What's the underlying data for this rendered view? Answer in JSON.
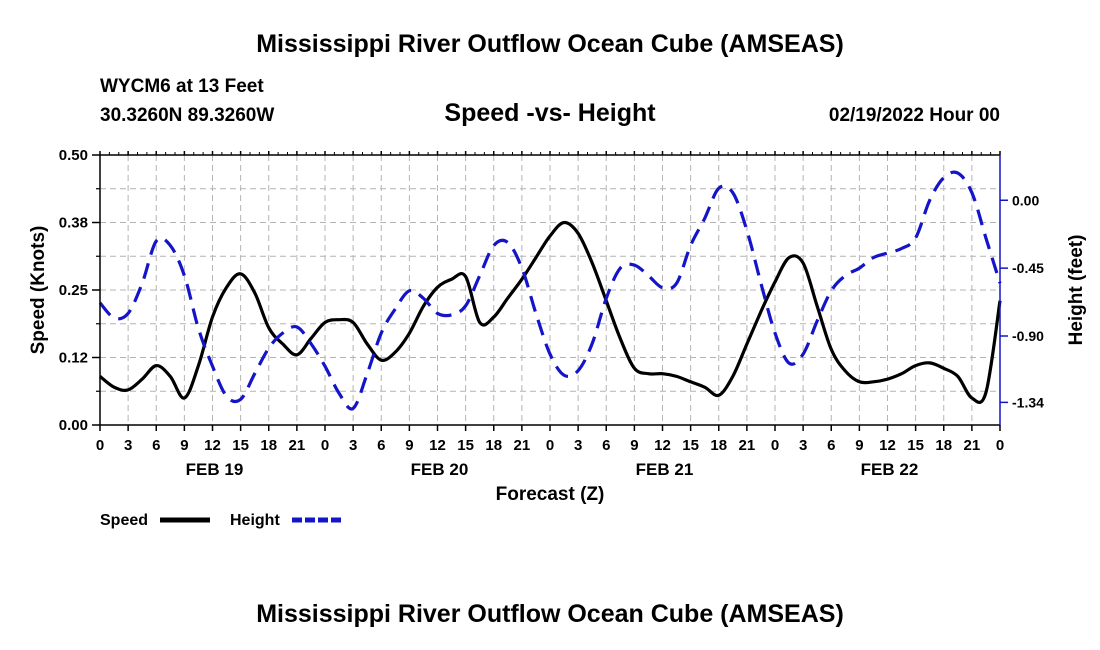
{
  "header": {
    "title": "Mississippi River Outflow Ocean Cube (AMSEAS)",
    "station": "WYCM6 at 13 Feet",
    "coords": "30.3260N  89.3260W",
    "subtitle": "Speed -vs- Height",
    "datetime": "02/19/2022 Hour 00"
  },
  "footer": {
    "title": "Mississippi River Outflow Ocean Cube (AMSEAS)"
  },
  "chart_data": {
    "type": "line",
    "title": "Speed -vs- Height",
    "xlabel": "Forecast (Z)",
    "ylabel": "Speed (Knots)",
    "y2label": "Height (feet)",
    "xlim": [
      0,
      96
    ],
    "ylim": [
      0,
      0.5
    ],
    "y2lim": [
      -1.49,
      0.3
    ],
    "x_tick_labels": [
      "0",
      "3",
      "6",
      "9",
      "12",
      "15",
      "18",
      "21",
      "0",
      "3",
      "6",
      "9",
      "12",
      "15",
      "18",
      "21",
      "0",
      "3",
      "6",
      "9",
      "12",
      "15",
      "18",
      "21",
      "0",
      "3",
      "6",
      "9",
      "12",
      "15",
      "18",
      "21",
      "0"
    ],
    "day_labels": [
      {
        "label": "FEB 19",
        "hour": 12
      },
      {
        "label": "FEB 20",
        "hour": 36
      },
      {
        "label": "FEB 21",
        "hour": 60
      },
      {
        "label": "FEB 22",
        "hour": 84
      }
    ],
    "y_tick_labels": [
      "0.00",
      "0.12",
      "0.25",
      "0.38",
      "0.50"
    ],
    "y2_ticks": [
      0.0,
      -0.45,
      -0.9,
      -1.34
    ],
    "y2_tick_labels": [
      "0.00",
      "-0.45",
      "-0.90",
      "-1.34"
    ],
    "grid": true,
    "legend": [
      {
        "name": "Speed",
        "color": "#000000",
        "style": "solid"
      },
      {
        "name": "Height",
        "color": "#1414c8",
        "style": "dashed"
      }
    ],
    "series": [
      {
        "name": "Speed",
        "axis": "left",
        "color": "#000000",
        "style": "solid",
        "x": [
          0,
          1.5,
          3,
          4.5,
          6,
          7.5,
          9,
          10.5,
          12,
          13.5,
          15,
          16.5,
          18,
          19.5,
          21,
          22.5,
          24,
          25.5,
          27,
          28.5,
          30,
          31.5,
          33,
          34.5,
          36,
          37.5,
          39,
          40.5,
          42,
          43.5,
          45,
          46.5,
          48,
          49.5,
          51,
          52.5,
          54,
          55.5,
          57,
          58.5,
          60,
          61.5,
          63,
          64.5,
          66,
          67.5,
          69,
          70.5,
          72,
          73.5,
          75,
          76.5,
          78,
          79.5,
          81,
          82.5,
          84,
          85.5,
          87,
          88.5,
          90,
          91.5,
          93,
          94.5,
          96
        ],
        "values": [
          0.09,
          0.07,
          0.065,
          0.085,
          0.11,
          0.09,
          0.05,
          0.11,
          0.2,
          0.255,
          0.28,
          0.245,
          0.18,
          0.15,
          0.13,
          0.16,
          0.19,
          0.195,
          0.19,
          0.15,
          0.12,
          0.135,
          0.17,
          0.22,
          0.255,
          0.27,
          0.275,
          0.19,
          0.2,
          0.235,
          0.27,
          0.31,
          0.35,
          0.375,
          0.355,
          0.3,
          0.23,
          0.16,
          0.105,
          0.095,
          0.095,
          0.09,
          0.08,
          0.07,
          0.055,
          0.09,
          0.15,
          0.21,
          0.265,
          0.31,
          0.3,
          0.22,
          0.14,
          0.1,
          0.08,
          0.08,
          0.085,
          0.095,
          0.11,
          0.115,
          0.105,
          0.09,
          0.05,
          0.06,
          0.23
        ]
      },
      {
        "name": "Height",
        "axis": "right",
        "color": "#1414c8",
        "style": "dashed",
        "x": [
          0,
          1.5,
          3,
          4.5,
          6,
          7.5,
          9,
          10.5,
          12,
          13.5,
          15,
          16.5,
          18,
          19.5,
          21,
          22.5,
          24,
          25.5,
          27,
          28.5,
          30,
          31.5,
          33,
          34.5,
          36,
          37.5,
          39,
          40.5,
          42,
          43.5,
          45,
          46.5,
          48,
          49.5,
          51,
          52.5,
          54,
          55.5,
          57,
          58.5,
          60,
          61.5,
          63,
          64.5,
          66,
          67.5,
          69,
          70.5,
          72,
          73.5,
          75,
          76.5,
          78,
          79.5,
          81,
          82.5,
          84,
          85.5,
          87,
          88.5,
          90,
          91.5,
          93,
          94.5,
          96
        ],
        "values": [
          -0.68,
          -0.78,
          -0.75,
          -0.55,
          -0.27,
          -0.3,
          -0.5,
          -0.85,
          -1.1,
          -1.3,
          -1.32,
          -1.15,
          -0.98,
          -0.88,
          -0.84,
          -0.95,
          -1.1,
          -1.28,
          -1.38,
          -1.15,
          -0.88,
          -0.72,
          -0.6,
          -0.65,
          -0.75,
          -0.76,
          -0.7,
          -0.5,
          -0.3,
          -0.28,
          -0.45,
          -0.75,
          -1.02,
          -1.16,
          -1.13,
          -0.95,
          -0.65,
          -0.45,
          -0.43,
          -0.5,
          -0.58,
          -0.55,
          -0.3,
          -0.12,
          0.08,
          0.05,
          -0.2,
          -0.55,
          -0.88,
          -1.08,
          -1.02,
          -0.8,
          -0.6,
          -0.5,
          -0.45,
          -0.38,
          -0.35,
          -0.32,
          -0.25,
          0.0,
          0.15,
          0.18,
          0.05,
          -0.25,
          -0.55
        ]
      }
    ]
  }
}
